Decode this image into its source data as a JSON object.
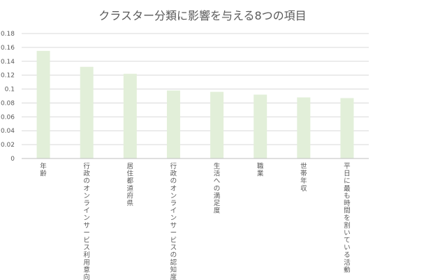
{
  "chart_data": {
    "type": "bar",
    "title": "クラスター分類に影響を与える8つの項目",
    "categories": [
      "年齢",
      "行政のオンラインサービス利用意向",
      "居住都道府県",
      "行政のオンラインサービスの認知度",
      "生活への満足度",
      "職業",
      "世帯年収",
      "平日に最も時間を割いている活動"
    ],
    "values": [
      0.155,
      0.132,
      0.122,
      0.098,
      0.096,
      0.092,
      0.088,
      0.087
    ],
    "ylim": [
      0,
      0.18
    ],
    "yticks": [
      "0",
      "0.02",
      "0.04",
      "0.06",
      "0.08",
      "0.1",
      "0.12",
      "0.14",
      "0.16",
      "0.18"
    ],
    "xlabel": "",
    "ylabel": "",
    "grid": true,
    "legend": "none",
    "colors": {
      "bar": "#e2efd9",
      "grid": "#d9d9d9",
      "text": "#595959"
    }
  }
}
